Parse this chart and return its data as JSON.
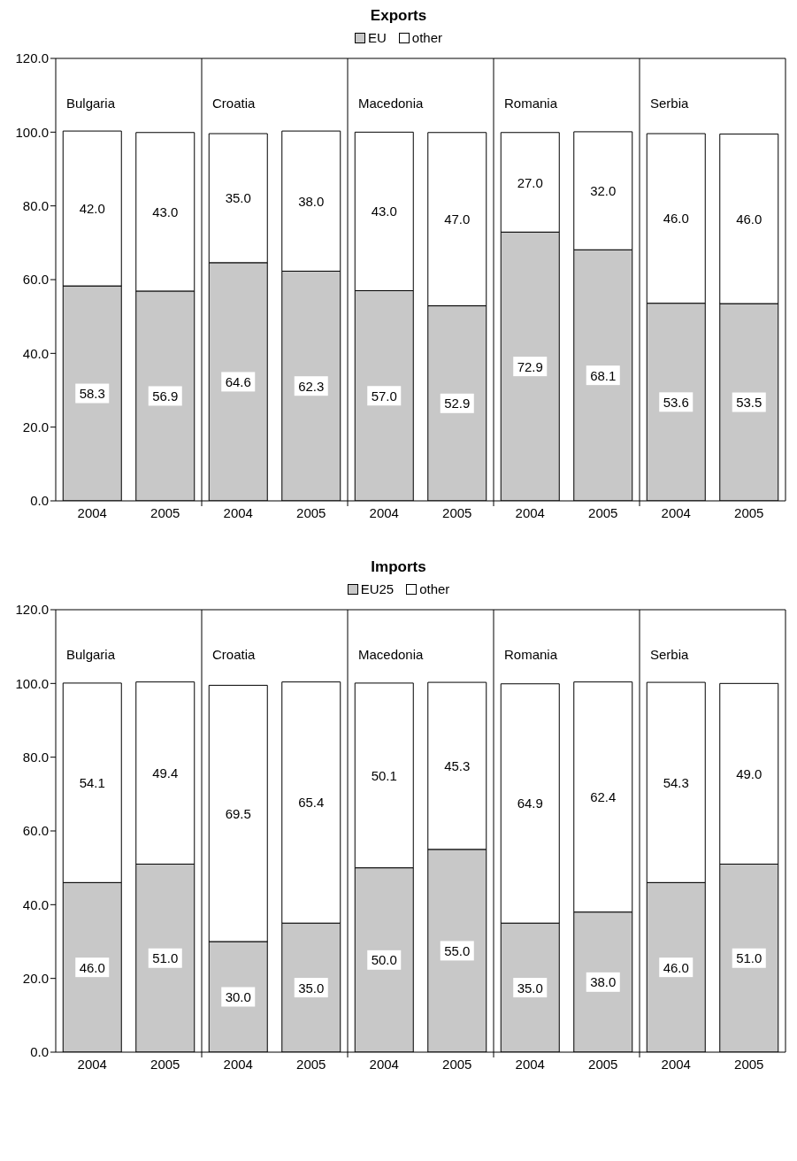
{
  "chart_data": [
    {
      "type": "bar",
      "title": "Exports",
      "stacked": true,
      "legend": "top",
      "grid": false,
      "categories": [
        "2004",
        "2005",
        "2004",
        "2005",
        "2004",
        "2005",
        "2004",
        "2005",
        "2004",
        "2005"
      ],
      "series": [
        {
          "name": "EU",
          "color": "#c8c8c8",
          "values": [
            58.3,
            56.9,
            64.6,
            62.3,
            57.0,
            52.9,
            72.9,
            68.1,
            53.6,
            53.5
          ],
          "value_labels": [
            "58.3",
            "56.9",
            "64.6",
            "62.3",
            "57.0",
            "52.9",
            "72.9",
            "68.1",
            "53.6",
            "53.5"
          ]
        },
        {
          "name": "other",
          "color": "#ffffff",
          "values": [
            42.0,
            43.0,
            35.0,
            38.0,
            43.0,
            47.0,
            27.0,
            32.0,
            46.0,
            46.0
          ],
          "value_labels": [
            "42.0",
            "43.0",
            "35.0",
            "38.0",
            "43.0",
            "47.0",
            "27.0",
            "32.0",
            "46.0",
            "46.0"
          ]
        }
      ],
      "annotations": [
        "Bulgaria",
        "Croatia",
        "Macedonia",
        "Romania",
        "Serbia"
      ],
      "ylim": [
        0,
        120
      ],
      "yticks": [
        {
          "value": 0,
          "label": "0.0"
        },
        {
          "value": 20,
          "label": "20.0"
        },
        {
          "value": 40,
          "label": "40.0"
        },
        {
          "value": 60,
          "label": "60.0"
        },
        {
          "value": 80,
          "label": "80.0"
        },
        {
          "value": 100,
          "label": "100.0"
        },
        {
          "value": 120,
          "label": "120.0"
        }
      ]
    },
    {
      "type": "bar",
      "title": "Imports",
      "stacked": true,
      "legend": "top",
      "grid": false,
      "categories": [
        "2004",
        "2005",
        "2004",
        "2005",
        "2004",
        "2005",
        "2004",
        "2005",
        "2004",
        "2005"
      ],
      "series": [
        {
          "name": "EU25",
          "color": "#c8c8c8",
          "values": [
            46.0,
            51.0,
            30.0,
            35.0,
            50.0,
            55.0,
            35.0,
            38.0,
            46.0,
            51.0
          ],
          "value_labels": [
            "46.0",
            "51.0",
            "30.0",
            "35.0",
            "50.0",
            "55.0",
            "35.0",
            "38.0",
            "46.0",
            "51.0"
          ]
        },
        {
          "name": "other",
          "color": "#ffffff",
          "values": [
            54.1,
            49.4,
            69.5,
            65.4,
            50.1,
            45.3,
            64.9,
            62.4,
            54.3,
            49.0
          ],
          "value_labels": [
            "54.1",
            "49.4",
            "69.5",
            "65.4",
            "50.1",
            "45.3",
            "64.9",
            "62.4",
            "54.3",
            "49.0"
          ]
        }
      ],
      "annotations": [
        "Bulgaria",
        "Croatia",
        "Macedonia",
        "Romania",
        "Serbia"
      ],
      "ylim": [
        0,
        120
      ],
      "yticks": [
        {
          "value": 0,
          "label": "0.0"
        },
        {
          "value": 20,
          "label": "20.0"
        },
        {
          "value": 40,
          "label": "40.0"
        },
        {
          "value": 60,
          "label": "60.0"
        },
        {
          "value": 80,
          "label": "80.0"
        },
        {
          "value": 100,
          "label": "100.0"
        },
        {
          "value": 120,
          "label": "120.0"
        }
      ]
    }
  ]
}
